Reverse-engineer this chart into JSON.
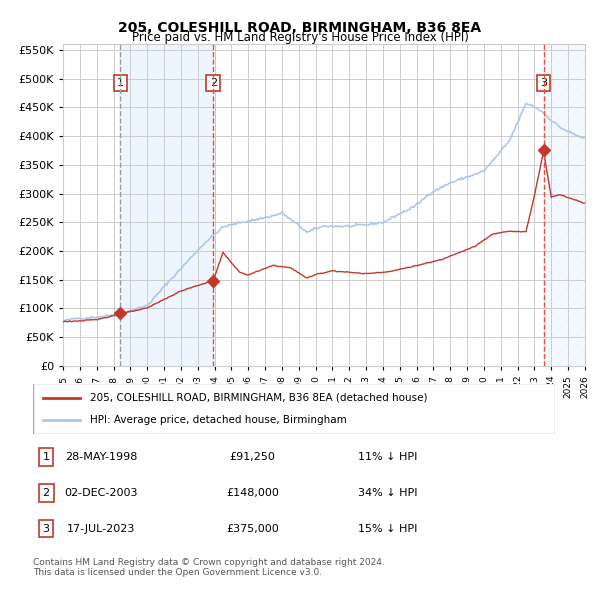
{
  "title": "205, COLESHILL ROAD, BIRMINGHAM, B36 8EA",
  "subtitle": "Price paid vs. HM Land Registry's House Price Index (HPI)",
  "ylabel": "",
  "ylim": [
    0,
    560000
  ],
  "yticks": [
    0,
    50000,
    100000,
    150000,
    200000,
    250000,
    300000,
    350000,
    400000,
    450000,
    500000,
    550000
  ],
  "ytick_labels": [
    "£0",
    "£50K",
    "£100K",
    "£150K",
    "£200K",
    "£250K",
    "£300K",
    "£350K",
    "£400K",
    "£450K",
    "£500K",
    "£550K"
  ],
  "hpi_color": "#aec6e8",
  "price_color": "#c0392b",
  "sale_marker_color": "#c0392b",
  "vline1_color": "#999999",
  "vline2_color": "#e74c3c",
  "vline3_color": "#e74c3c",
  "bg_shade_color": "#ddeeff",
  "hatch_color": "#aaaacc",
  "sale1_x": 1998.41,
  "sale1_y": 91250,
  "sale2_x": 2003.92,
  "sale2_y": 148000,
  "sale3_x": 2023.54,
  "sale3_y": 375000,
  "legend_label_red": "205, COLESHILL ROAD, BIRMINGHAM, B36 8EA (detached house)",
  "legend_label_blue": "HPI: Average price, detached house, Birmingham",
  "table_rows": [
    {
      "num": "1",
      "date": "28-MAY-1998",
      "price": "£91,250",
      "hpi": "11% ↓ HPI"
    },
    {
      "num": "2",
      "date": "02-DEC-2003",
      "price": "£148,000",
      "hpi": "34% ↓ HPI"
    },
    {
      "num": "3",
      "date": "17-JUL-2023",
      "price": "£375,000",
      "hpi": "15% ↓ HPI"
    }
  ],
  "footnote": "Contains HM Land Registry data © Crown copyright and database right 2024.\nThis data is licensed under the Open Government Licence v3.0.",
  "xmin": 1995,
  "xmax": 2026
}
